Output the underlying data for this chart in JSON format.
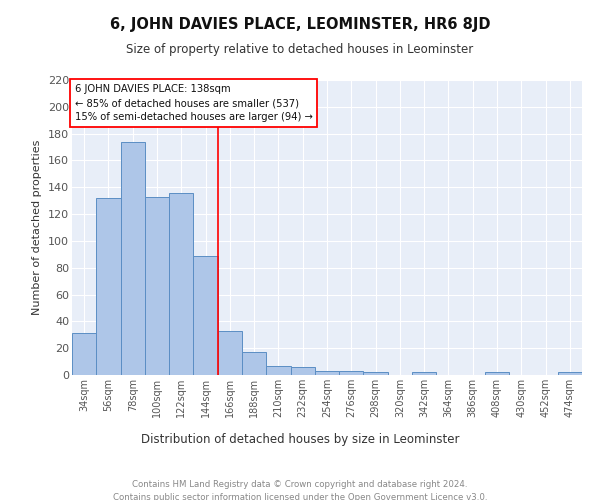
{
  "title": "6, JOHN DAVIES PLACE, LEOMINSTER, HR6 8JD",
  "subtitle": "Size of property relative to detached houses in Leominster",
  "xlabel": "Distribution of detached houses by size in Leominster",
  "ylabel": "Number of detached properties",
  "categories": [
    "34sqm",
    "56sqm",
    "78sqm",
    "100sqm",
    "122sqm",
    "144sqm",
    "166sqm",
    "188sqm",
    "210sqm",
    "232sqm",
    "254sqm",
    "276sqm",
    "298sqm",
    "320sqm",
    "342sqm",
    "364sqm",
    "386sqm",
    "408sqm",
    "430sqm",
    "452sqm",
    "474sqm"
  ],
  "values": [
    31,
    132,
    174,
    133,
    136,
    89,
    33,
    17,
    7,
    6,
    3,
    3,
    2,
    0,
    2,
    0,
    0,
    2,
    0,
    0,
    2
  ],
  "bar_color": "#aec6e8",
  "bar_edge_color": "#5b8ec4",
  "background_color": "#e8eef8",
  "grid_color": "#ffffff",
  "red_line_x": 5.5,
  "annotation_title": "6 JOHN DAVIES PLACE: 138sqm",
  "annotation_line1": "← 85% of detached houses are smaller (537)",
  "annotation_line2": "15% of semi-detached houses are larger (94) →",
  "footer_line1": "Contains HM Land Registry data © Crown copyright and database right 2024.",
  "footer_line2": "Contains public sector information licensed under the Open Government Licence v3.0.",
  "ylim": [
    0,
    220
  ],
  "yticks": [
    0,
    20,
    40,
    60,
    80,
    100,
    120,
    140,
    160,
    180,
    200,
    220
  ]
}
